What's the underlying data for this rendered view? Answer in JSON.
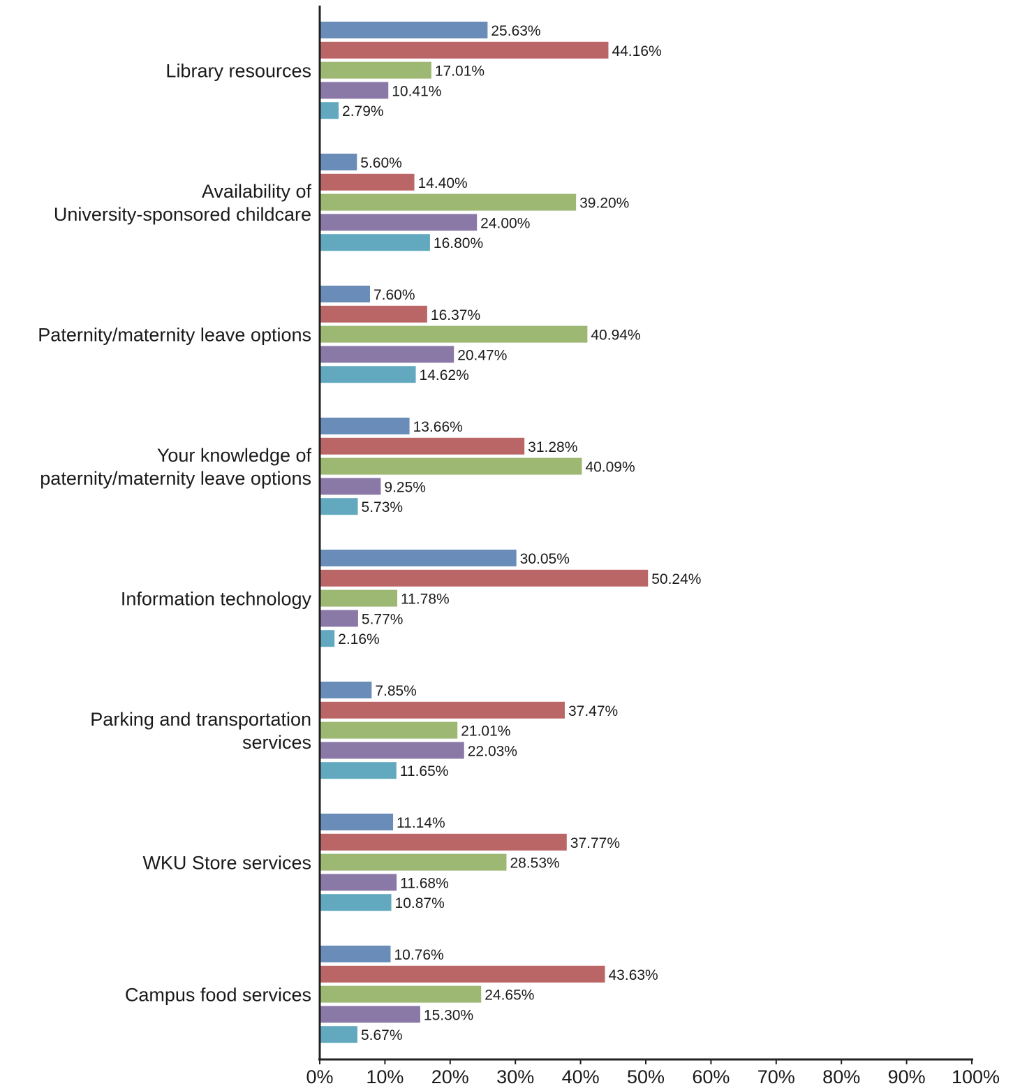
{
  "chart_data": {
    "type": "bar",
    "orientation": "horizontal",
    "title": "",
    "xlabel": "",
    "ylabel": "",
    "xlim": [
      0,
      100
    ],
    "x_ticks": [
      "0%",
      "10%",
      "20%",
      "30%",
      "40%",
      "50%",
      "60%",
      "70%",
      "80%",
      "90%",
      "100%"
    ],
    "grid": false,
    "legend": "none",
    "categories": [
      [
        "Library resources"
      ],
      [
        "Availability of",
        "University-sponsored childcare"
      ],
      [
        "Paternity/maternity leave options"
      ],
      [
        "Your knowledge of",
        "paternity/maternity leave options"
      ],
      [
        "Information technology"
      ],
      [
        "Parking and transportation",
        "services"
      ],
      [
        "WKU Store services"
      ],
      [
        "Campus food services"
      ]
    ],
    "series": [
      {
        "color": "#6a8cb8",
        "values": [
          25.63,
          5.6,
          7.6,
          13.66,
          30.05,
          7.85,
          11.14,
          10.76
        ],
        "labels": [
          "25.63%",
          "5.60%",
          "7.60%",
          "13.66%",
          "30.05%",
          "7.85%",
          "11.14%",
          "10.76%"
        ]
      },
      {
        "color": "#bb6666",
        "values": [
          44.16,
          14.4,
          16.37,
          31.28,
          50.24,
          37.47,
          37.77,
          43.63
        ],
        "labels": [
          "44.16%",
          "14.40%",
          "16.37%",
          "31.28%",
          "50.24%",
          "37.47%",
          "37.77%",
          "43.63%"
        ]
      },
      {
        "color": "#9db872",
        "values": [
          17.01,
          39.2,
          40.94,
          40.09,
          11.78,
          21.01,
          28.53,
          24.65
        ],
        "labels": [
          "17.01%",
          "39.20%",
          "40.94%",
          "40.09%",
          "11.78%",
          "21.01%",
          "28.53%",
          "24.65%"
        ]
      },
      {
        "color": "#8a78a6",
        "values": [
          10.41,
          24.0,
          20.47,
          9.25,
          5.77,
          22.03,
          11.68,
          15.3
        ],
        "labels": [
          "10.41%",
          "24.00%",
          "20.47%",
          "9.25%",
          "5.77%",
          "22.03%",
          "11.68%",
          "15.30%"
        ]
      },
      {
        "color": "#62a9c0",
        "values": [
          2.79,
          16.8,
          14.62,
          5.73,
          2.16,
          11.65,
          10.87,
          5.67
        ],
        "labels": [
          "2.79%",
          "16.80%",
          "14.62%",
          "5.73%",
          "2.16%",
          "11.65%",
          "10.87%",
          "5.67%"
        ]
      }
    ]
  }
}
